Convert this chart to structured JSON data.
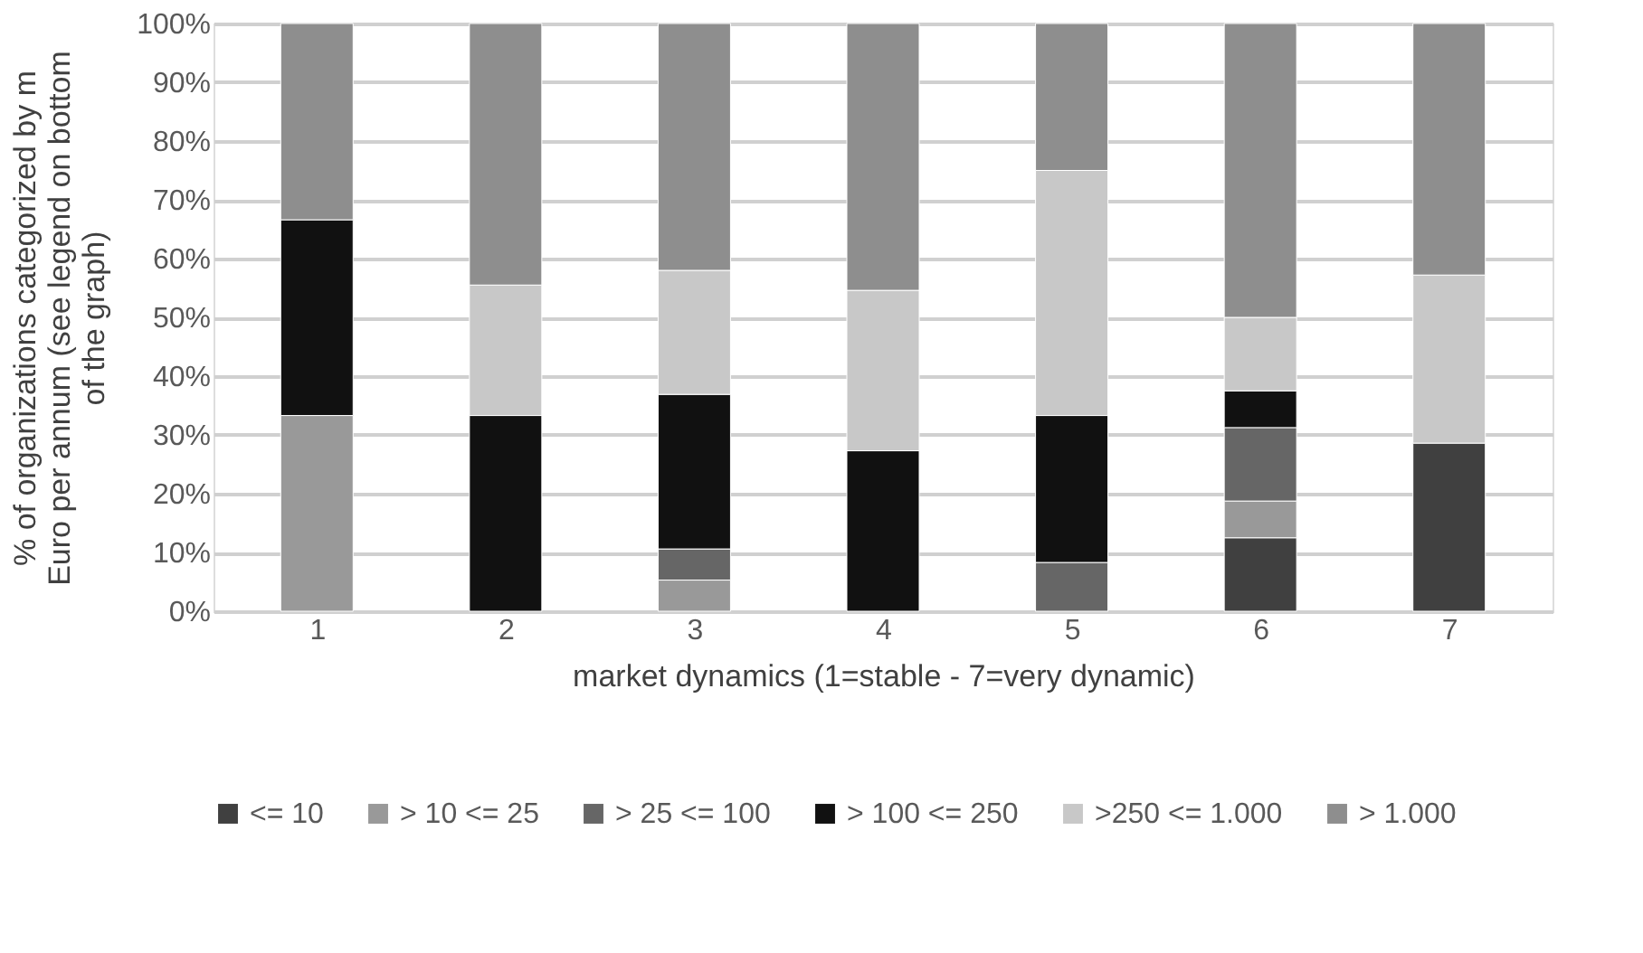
{
  "chart_data": {
    "type": "bar",
    "stacked": true,
    "xlabel": "market dynamics (1=stable - 7=very dynamic)",
    "ylabel": "% of organizations categorized by m Euro per annum (see legend on bottom of the graph)",
    "categories": [
      "1",
      "2",
      "3",
      "4",
      "5",
      "6",
      "7"
    ],
    "series": [
      {
        "name": "<= 10",
        "color": "#404040",
        "values": [
          null,
          null,
          null,
          null,
          null,
          12.5,
          28.6
        ]
      },
      {
        "name": "> 10 <= 25",
        "color": "#999999",
        "values": [
          33.3,
          null,
          5.3,
          null,
          null,
          6.25,
          null
        ]
      },
      {
        "name": "> 25 <= 100",
        "color": "#666666",
        "values": [
          null,
          null,
          5.3,
          null,
          8.3,
          12.5,
          null
        ]
      },
      {
        "name": "> 100 <= 250",
        "color": "#111111",
        "values": [
          33.3,
          33.3,
          26.3,
          27.3,
          25,
          6.25,
          null
        ]
      },
      {
        "name": ">250 <= 1.000",
        "color": "#c8c8c8",
        "values": [
          null,
          22.2,
          21.1,
          27.3,
          41.7,
          12.5,
          28.6
        ]
      },
      {
        "name": "> 1.000",
        "color": "#8e8e8e",
        "values": [
          33.4,
          44.5,
          42,
          45.4,
          25,
          50,
          42.8
        ]
      }
    ],
    "ylim": [
      0,
      100
    ],
    "yticks": [
      {
        "value": 0,
        "label": "0%"
      },
      {
        "value": 10,
        "label": "10%"
      },
      {
        "value": 20,
        "label": "20%"
      },
      {
        "value": 30,
        "label": "30%"
      },
      {
        "value": 40,
        "label": "40%"
      },
      {
        "value": 50,
        "label": "50%"
      },
      {
        "value": 60,
        "label": "60%"
      },
      {
        "value": 70,
        "label": "70%"
      },
      {
        "value": 80,
        "label": "80%"
      },
      {
        "value": 90,
        "label": "90%"
      },
      {
        "value": 100,
        "label": "100%"
      }
    ],
    "grid": "y",
    "legend": "bottom"
  }
}
